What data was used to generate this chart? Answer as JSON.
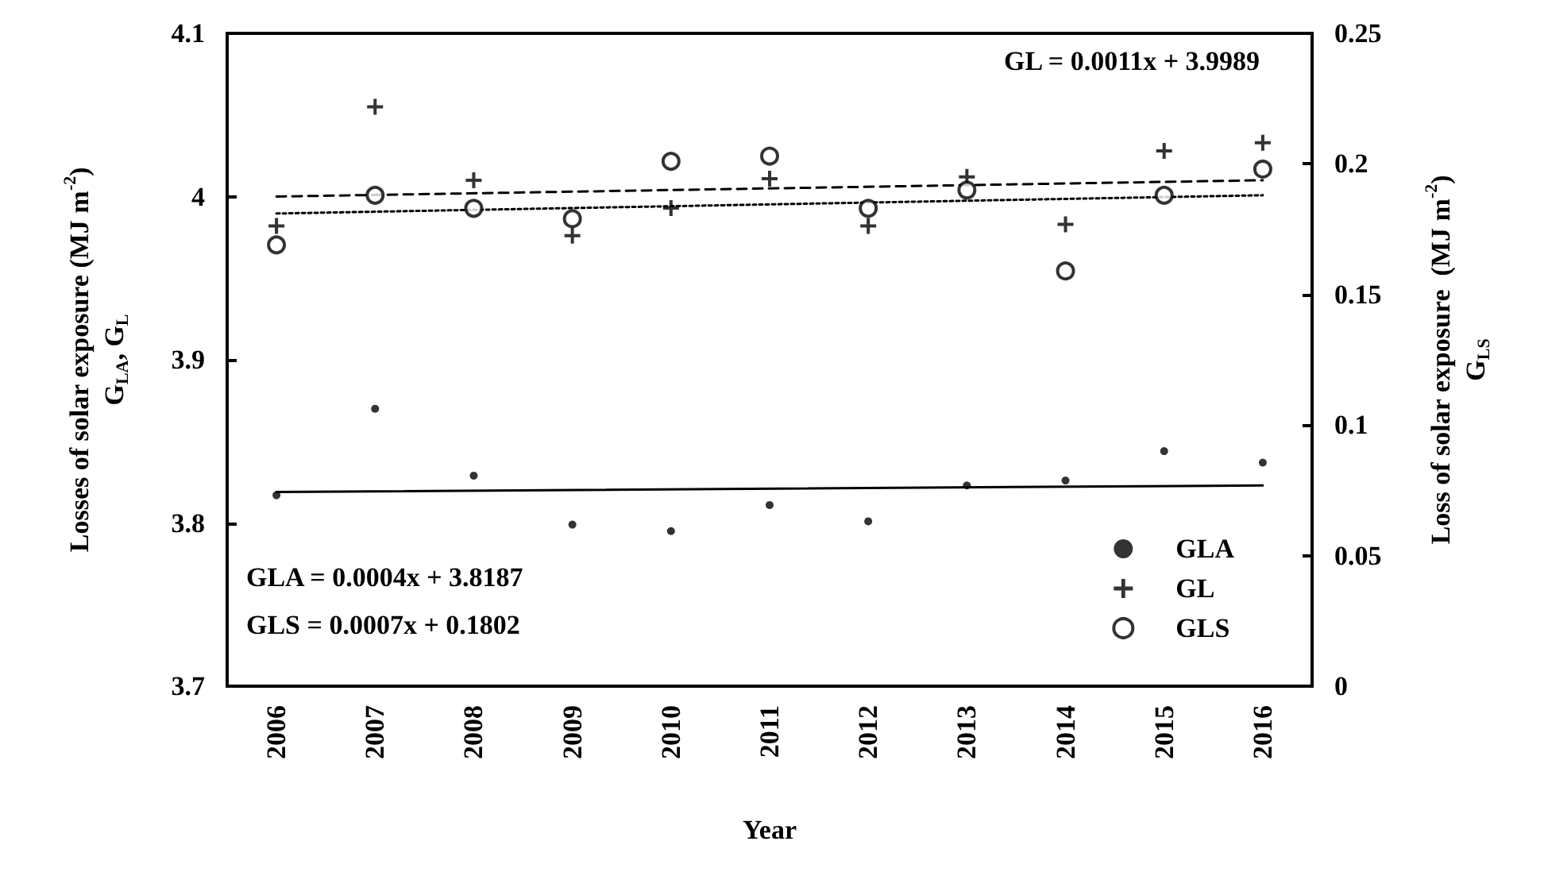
{
  "chart_data": {
    "type": "scatter",
    "xlabel": "Year",
    "ylabel": "Losses of solar exposure (MJ m$^{-2}$)\nG$_{LA}$, G$_{L}$",
    "y2label": "Loss of solar exposure  (MJ m$^{-2}$)\nG$_{LS}$",
    "categories": [
      "2006",
      "2007",
      "2008",
      "2009",
      "2010",
      "2011",
      "2012",
      "2013",
      "2014",
      "2015",
      "2016"
    ],
    "ylim": [
      3.7,
      4.1
    ],
    "yticks": [
      3.7,
      3.8,
      3.9,
      4,
      4.1
    ],
    "y2lim": [
      0,
      0.25
    ],
    "y2ticks": [
      0,
      0.05,
      0.1,
      0.15,
      0.2,
      0.25
    ],
    "legend": "bottom right",
    "annotations": [
      "GL = 0.0011x + 3.9989",
      "GLA = 0.0004x + 3.8187",
      "GLS = 0.0007x + 0.1802"
    ],
    "series": [
      {
        "name": "GLA",
        "color": "#000000",
        "marker": "circle",
        "values": [
          3.817,
          3.87,
          3.829,
          3.799,
          3.795,
          3.811,
          3.801,
          3.823,
          3.826,
          3.844,
          3.837
        ]
      },
      {
        "name": "GL",
        "color": "#000000",
        "marker": "cross",
        "values": [
          3.982,
          4.055,
          4.01,
          3.976,
          3.993,
          4.011,
          3.982,
          4.012,
          3.983,
          4.028,
          4.033
        ]
      },
      {
        "name": "GLS",
        "color": "#000000",
        "marker": "circle",
        "axis": "y2",
        "values": [
          0.169,
          0.188,
          0.183,
          0.179,
          0.201,
          0.203,
          0.183,
          0.19,
          0.159,
          0.188,
          0.198
        ]
      },
      {
        "type": "line",
        "color": "#000000",
        "marker": "none",
        "line_style": "solid",
        "values": [
          3.819,
          null,
          null,
          null,
          null,
          null,
          null,
          null,
          null,
          null,
          3.823
        ]
      },
      {
        "type": "line",
        "color": "#000000",
        "marker": "none",
        "line_style": "dashed",
        "values": [
          4.0,
          null,
          null,
          null,
          null,
          null,
          null,
          null,
          null,
          null,
          4.01
        ]
      },
      {
        "type": "line",
        "color": "#000000",
        "marker": "none",
        "line_style": "dotted",
        "axis": "y2",
        "values": [
          0.181,
          null,
          null,
          null,
          null,
          null,
          null,
          null,
          null,
          null,
          0.188
        ]
      }
    ]
  }
}
